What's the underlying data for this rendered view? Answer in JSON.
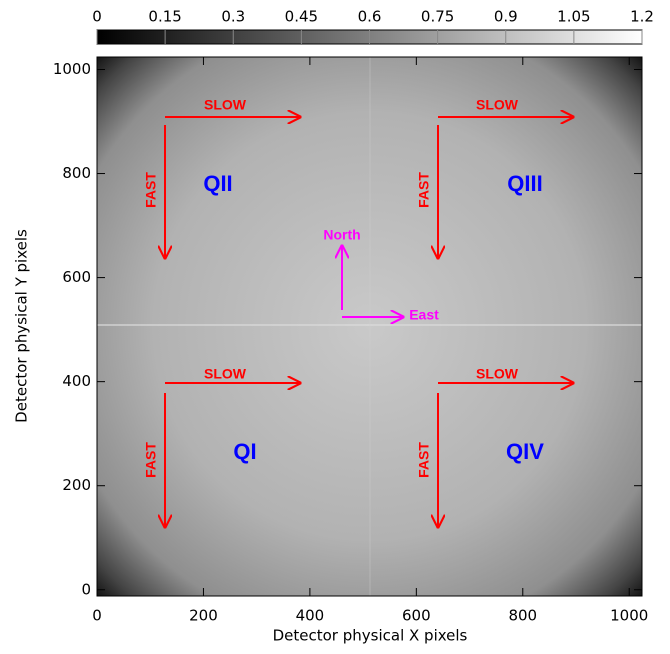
{
  "chart_data": {
    "type": "image",
    "xlabel": "Detector physical X pixels",
    "ylabel": "Detector physical Y pixels",
    "xlim": [
      0,
      1024
    ],
    "xticks": [
      0,
      200,
      400,
      600,
      800,
      1000
    ],
    "ylim": [
      -12,
      1024
    ],
    "yticks": [
      0,
      200,
      400,
      600,
      800,
      1000
    ],
    "colorbar": {
      "lim": [
        0,
        1.2
      ],
      "ticks": [
        0,
        0.15,
        0.3,
        0.45,
        0.6,
        0.75,
        0.9,
        1.05,
        1.2
      ]
    },
    "annotations": [
      "SLOW",
      "FAST",
      "QII",
      "SLOW",
      "FAST",
      "QIII",
      "SLOW",
      "FAST",
      "QI",
      "SLOW",
      "FAST",
      "QIV",
      "North",
      "East"
    ]
  }
}
